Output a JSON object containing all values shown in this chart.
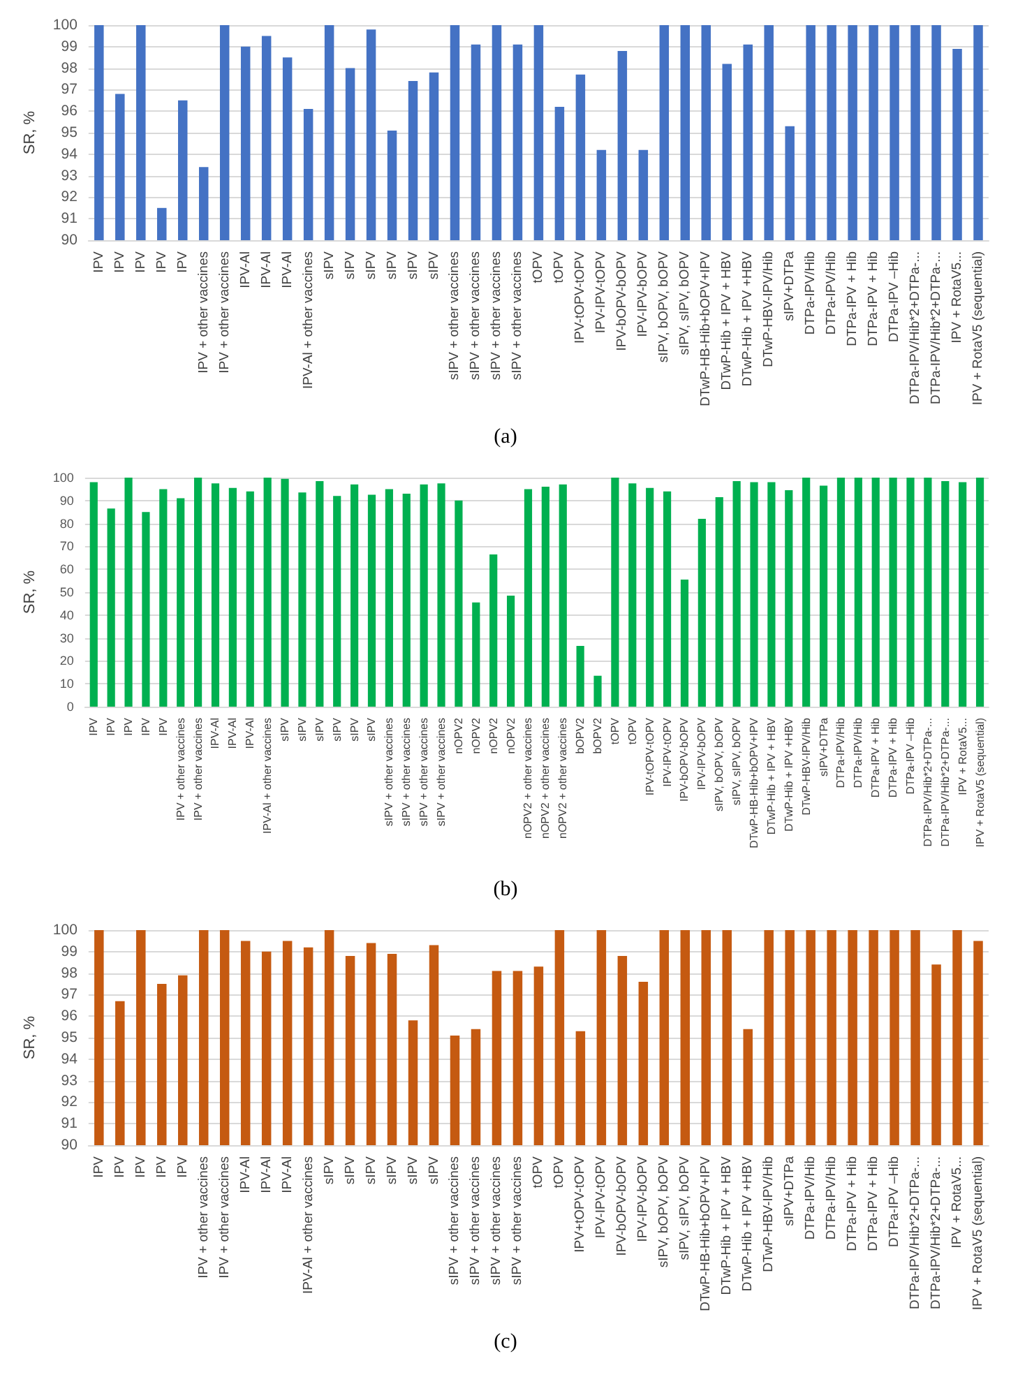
{
  "chart_data": [
    {
      "type": "bar",
      "ylabel": "SR, %",
      "annotations": [
        "(a)"
      ],
      "grid": "y",
      "ylim": [
        90,
        100
      ],
      "yticks": [
        90,
        91,
        92,
        93,
        94,
        95,
        96,
        97,
        98,
        99,
        100
      ],
      "categories": [
        "IPV",
        "IPV",
        "IPV",
        "IPV",
        "IPV",
        "IPV + other vaccines",
        "IPV + other vaccines",
        "IPV-Al",
        "IPV-Al",
        "IPV-Al",
        "IPV-Al + other vaccines",
        "sIPV",
        "sIPV",
        "sIPV",
        "sIPV",
        "sIPV",
        "sIPV",
        "sIPV + other vaccines",
        "sIPV + other vaccines",
        "sIPV + other vaccines",
        "sIPV + other vaccines",
        "tOPV",
        "tOPV",
        "IPV-tOPV-tOPV",
        "IPV-IPV-tOPV",
        "IPV-bOPV-bOPV",
        "IPV-IPV-bOPV",
        "sIPV, bOPV, bOPV",
        "sIPV, sIPV, bOPV",
        "DTwP-HB-Hib+bOPV+IPV",
        "DTwP-Hib + IPV + HBV",
        "DTwP-Hib + IPV +HBV",
        "DTwP-HBV-IPV/Hib",
        "sIPV+DTPa",
        "DTPa-IPV/Hib",
        "DTPa-IPV/Hib",
        "DTPa-IPV + Hib",
        "DTPa-IPV + Hib",
        "DTPa-IPV –Hib",
        "DTPa-IPV/Hib*2+DTPa-...",
        "DTPa-IPV/Hib*2+DTPa-...",
        "IPV + RotaV5...",
        "IPV + RotaV5 (sequential)"
      ],
      "series": [
        {
          "color": "#4472c4",
          "values": [
            100,
            96.8,
            100,
            91.5,
            96.5,
            93.4,
            100,
            99,
            99.5,
            98.5,
            96.1,
            100,
            98,
            99.8,
            95.1,
            97.4,
            97.8,
            100,
            99.1,
            100,
            99.1,
            100,
            96.2,
            97.7,
            94.2,
            98.8,
            94.2,
            100,
            100,
            100,
            98.2,
            99.1,
            100,
            95.3,
            100,
            100,
            100,
            100,
            100,
            100,
            100,
            98.9,
            100
          ]
        }
      ]
    },
    {
      "type": "bar",
      "ylabel": "SR, %",
      "annotations": [
        "(b)"
      ],
      "grid": "y",
      "ylim": [
        0,
        100
      ],
      "yticks": [
        0,
        10,
        20,
        30,
        40,
        50,
        60,
        70,
        80,
        90,
        100
      ],
      "categories": [
        "IPV",
        "IPV",
        "IPV",
        "IPV",
        "IPV",
        "IPV + other vaccines",
        "IPV + other vaccines",
        "IPV-Al",
        "IPV-Al",
        "IPV-Al",
        "IPV-Al + other vaccines",
        "sIPV",
        "sIPV",
        "sIPV",
        "sIPV",
        "sIPV",
        "sIPV",
        "sIPV + other vaccines",
        "sIPV + other vaccines",
        "sIPV + other vaccines",
        "sIPV + other vaccines",
        "nOPV2",
        "nOPV2",
        "nOPV2",
        "nOPV2",
        "nOPV2 + other vaccines",
        "nOPV2 + other vaccines",
        "nOPV2 + other vaccines",
        "bOPV2",
        "bOPV2",
        "tOPV",
        "tOPV",
        "IPV-tOPV-tOPV",
        "IPV-IPV-tOPV",
        "IPV-bOPV-bOPV",
        "IPV-IPV-bOPV",
        "sIPV, bOPV, bOPV",
        "sIPV, sIPV, bOPV",
        "DTwP-HB-Hib+bOPV+IPV",
        "DTwP-Hib + IPV + HBV",
        "DTwP-Hib + IPV +HBV",
        "DTwP-HBV-IPV/Hib",
        "sIPV+DTPa",
        "DTPa-IPV/Hib",
        "DTPa-IPV/Hib",
        "DTPa-IPV + Hib",
        "DTPa-IPV + Hib",
        "DTPa-IPV –Hib",
        "DTPa-IPV/Hib*2+DTPa-...",
        "DTPa-IPV/Hib*2+DTPa-...",
        "IPV + RotaV5...",
        "IPV + RotaV5 (sequential)"
      ],
      "series": [
        {
          "color": "#00b050",
          "values": [
            98,
            86.5,
            100,
            85,
            95,
            91,
            100,
            97.5,
            95.5,
            94,
            100,
            99.5,
            93.5,
            98.5,
            92,
            97,
            92.5,
            95,
            93,
            97,
            97.5,
            90,
            45.5,
            66.5,
            48.5,
            95,
            96,
            97,
            26.5,
            13.5,
            100,
            97.5,
            95.5,
            94,
            55.5,
            82,
            91.5,
            98.5,
            98,
            98,
            94.5,
            100,
            96.5,
            100,
            100,
            100,
            100,
            100,
            100,
            98.5,
            98,
            100
          ]
        }
      ]
    },
    {
      "type": "bar",
      "ylabel": "SR, %",
      "annotations": [
        "(c)"
      ],
      "grid": "y",
      "ylim": [
        90,
        100
      ],
      "yticks": [
        90,
        91,
        92,
        93,
        94,
        95,
        96,
        97,
        98,
        99,
        100
      ],
      "categories": [
        "IPV",
        "IPV",
        "IPV",
        "IPV",
        "IPV",
        "IPV + other vaccines",
        "IPV + other vaccines",
        "IPV-Al",
        "IPV-Al",
        "IPV-Al",
        "IPV-Al + other vaccines",
        "sIPV",
        "sIPV",
        "sIPV",
        "sIPV",
        "sIPV",
        "sIPV",
        "sIPV + other vaccines",
        "sIPV + other vaccines",
        "sIPV + other vaccines",
        "sIPV + other vaccines",
        "tOPV",
        "tOPV",
        "IPV+tOPV-tOPV",
        "IPV-IPV-tOPV",
        "IPV-bOPV-bOPV",
        "IPV-IPV-bOPV",
        "sIPV, bOPV, bOPV",
        "sIPV, sIPV, bOPV",
        "DTwP-HB-Hib+bOPV+IPV",
        "DTwP-Hib + IPV + HBV",
        "DTwP-Hib + IPV +HBV",
        "DTwP-HBV-IPV/Hib",
        "sIPV+DTPa",
        "DTPa-IPV/Hib",
        "DTPa-IPV/Hib",
        "DTPa-IPV + Hib",
        "DTPa-IPV + Hib",
        "DTPa-IPV –Hib",
        "DTPa-IPV/Hib*2+DTPa-...",
        "DTPa-IPV/Hib*2+DTPa-...",
        "IPV + RotaV5...",
        "IPV + RotaV5 (sequential)"
      ],
      "series": [
        {
          "color": "#c55a11",
          "values": [
            100,
            96.7,
            100,
            97.5,
            97.9,
            100,
            100,
            99.5,
            99,
            99.5,
            99.2,
            100,
            98.8,
            99.4,
            98.9,
            95.8,
            99.3,
            95.1,
            95.4,
            98.1,
            98.1,
            98.3,
            100,
            95.3,
            100,
            98.8,
            97.6,
            100,
            100,
            100,
            100,
            95.4,
            100,
            100,
            100,
            100,
            100,
            100,
            100,
            100,
            98.4,
            100,
            99.5
          ]
        }
      ]
    }
  ]
}
